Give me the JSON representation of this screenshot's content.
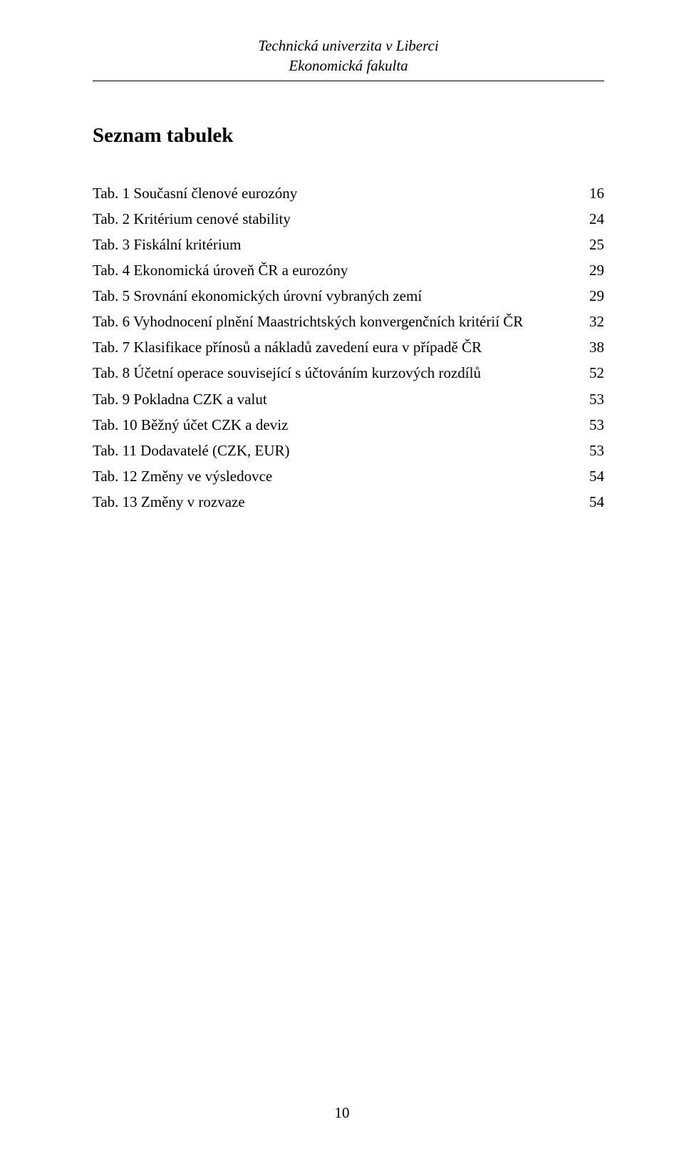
{
  "header": {
    "line1": "Technická univerzita v Liberci",
    "line2": "Ekonomická fakulta"
  },
  "section_title": "Seznam tabulek",
  "toc": {
    "entries": [
      {
        "label": "Tab. 1 Současní členové eurozóny",
        "page": "16"
      },
      {
        "label": "Tab. 2 Kritérium cenové stability",
        "page": "24"
      },
      {
        "label": "Tab. 3 Fiskální kritérium",
        "page": "25"
      },
      {
        "label": "Tab. 4 Ekonomická úroveň ČR a eurozóny",
        "page": "29"
      },
      {
        "label": "Tab. 5 Srovnání ekonomických úrovní vybraných zemí",
        "page": "29"
      },
      {
        "label": "Tab. 6 Vyhodnocení plnění Maastrichtských konvergenčních kritérií ČR",
        "page": "32"
      },
      {
        "label": "Tab. 7 Klasifikace přínosů a nákladů zavedení eura v případě ČR",
        "page": "38"
      },
      {
        "label": "Tab. 8 Účetní operace související s účtováním kurzových rozdílů",
        "page": "52"
      },
      {
        "label": "Tab. 9 Pokladna CZK a valut",
        "page": "53"
      },
      {
        "label": "Tab. 10 Běžný účet CZK a deviz",
        "page": "53"
      },
      {
        "label": "Tab. 11 Dodavatelé (CZK, EUR)",
        "page": "53"
      },
      {
        "label": "Tab. 12 Změny ve výsledovce",
        "page": "54"
      },
      {
        "label": "Tab. 13 Změny v rozvaze",
        "page": "54"
      }
    ]
  },
  "page_number": "10",
  "colors": {
    "text": "#000000",
    "background": "#ffffff",
    "rule": "#000000"
  },
  "typography": {
    "body_fontsize_pt": 16,
    "title_fontsize_pt": 22,
    "font_family": "Times New Roman"
  }
}
